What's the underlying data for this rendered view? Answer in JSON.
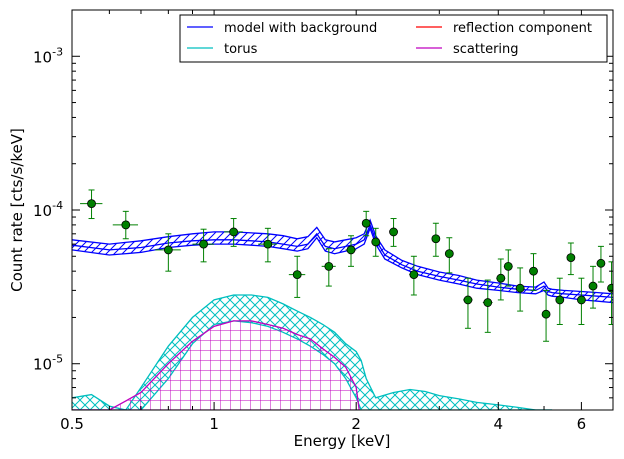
{
  "chart_data": {
    "type": "line",
    "xlabel": "Energy [keV]",
    "ylabel": "Count rate [cts/s/keV]",
    "x_scale": "log",
    "y_scale": "log",
    "xlim": [
      0.5,
      7.0
    ],
    "ylim": [
      5e-06,
      0.002
    ],
    "x_ticks": [
      {
        "value": 0.5,
        "label": "0.5"
      },
      {
        "value": 1,
        "label": "1"
      },
      {
        "value": 2,
        "label": "2"
      },
      {
        "value": 4,
        "label": "4"
      },
      {
        "value": 6,
        "label": "6"
      }
    ],
    "y_ticks": [
      {
        "value": 1e-05,
        "base": "10",
        "exp": "-5"
      },
      {
        "value": 0.0001,
        "base": "10",
        "exp": "-4"
      },
      {
        "value": 0.001,
        "base": "10",
        "exp": "-3"
      }
    ],
    "legend": {
      "placement": "top-right",
      "columns": 2,
      "entries": [
        {
          "label": "model with background",
          "color": "#0000ff"
        },
        {
          "label": "torus",
          "color": "#00bfbf"
        },
        {
          "label": "reflection component",
          "color": "#ff0000"
        },
        {
          "label": "scattering",
          "color": "#bf00bf"
        }
      ]
    },
    "series": [
      {
        "name": "model with background",
        "color": "#0000ff",
        "hatch": "diagonal",
        "x": [
          0.5,
          0.6,
          0.7,
          0.8,
          0.9,
          1.0,
          1.1,
          1.2,
          1.3,
          1.4,
          1.5,
          1.58,
          1.65,
          1.72,
          1.8,
          1.9,
          2.0,
          2.08,
          2.14,
          2.2,
          2.3,
          2.5,
          2.7,
          3.0,
          3.3,
          3.6,
          4.0,
          4.4,
          4.8,
          5.0,
          5.1,
          5.2,
          5.5,
          6.0,
          6.5,
          7.0
        ],
        "lower": [
          5.5e-05,
          5.1e-05,
          5.3e-05,
          5.7e-05,
          5.9e-05,
          6e-05,
          6e-05,
          5.9e-05,
          5.8e-05,
          5.6e-05,
          5.4e-05,
          5.6e-05,
          6.6e-05,
          5.4e-05,
          5.2e-05,
          5.4e-05,
          5.6e-05,
          6e-05,
          7.6e-05,
          6e-05,
          4.8e-05,
          4.2e-05,
          3.8e-05,
          3.5e-05,
          3.3e-05,
          3.1e-05,
          3e-05,
          2.9e-05,
          2.85e-05,
          3e-05,
          2.8e-05,
          2.75e-05,
          2.7e-05,
          2.6e-05,
          2.55e-05,
          2.5e-05
        ],
        "model": [
          5.9e-05,
          5.5e-05,
          5.7e-05,
          6.1e-05,
          6.3e-05,
          6.4e-05,
          6.4e-05,
          6.3e-05,
          6.2e-05,
          6e-05,
          5.8e-05,
          6e-05,
          7e-05,
          5.8e-05,
          5.6e-05,
          5.8e-05,
          6e-05,
          6.4e-05,
          8e-05,
          6.4e-05,
          5.1e-05,
          4.4e-05,
          4e-05,
          3.7e-05,
          3.5e-05,
          3.3e-05,
          3.15e-05,
          3.05e-05,
          3e-05,
          3.2e-05,
          2.95e-05,
          2.9e-05,
          2.85e-05,
          2.8e-05,
          2.75e-05,
          2.7e-05
        ],
        "upper": [
          6.4e-05,
          6e-05,
          6.3e-05,
          6.7e-05,
          7e-05,
          7.2e-05,
          7.2e-05,
          7.1e-05,
          7e-05,
          6.8e-05,
          6.5e-05,
          6.7e-05,
          7.7e-05,
          6.4e-05,
          6.2e-05,
          6.4e-05,
          6.6e-05,
          7e-05,
          8.6e-05,
          6.8e-05,
          5.5e-05,
          4.7e-05,
          4.3e-05,
          3.95e-05,
          3.75e-05,
          3.5e-05,
          3.35e-05,
          3.2e-05,
          3.15e-05,
          3.4e-05,
          3.1e-05,
          3.05e-05,
          3e-05,
          2.95e-05,
          2.9e-05,
          2.85e-05
        ]
      },
      {
        "name": "torus",
        "color": "#00bfbf",
        "hatch": "crosshatch",
        "x": [
          0.5,
          0.55,
          0.6,
          0.65,
          0.7,
          0.8,
          0.9,
          1.0,
          1.1,
          1.2,
          1.3,
          1.4,
          1.5,
          1.6,
          1.7,
          1.8,
          1.9,
          2.0,
          2.05,
          2.1,
          2.2,
          2.4,
          2.6,
          2.8,
          3.0,
          3.3,
          3.6,
          4.0,
          4.4,
          4.8,
          5.0,
          5.2
        ],
        "lower": [
          5e-06,
          5e-06,
          5e-06,
          5e-06,
          5e-06,
          8e-06,
          1.35e-05,
          1.8e-05,
          1.9e-05,
          1.85e-05,
          1.75e-05,
          1.6e-05,
          1.45e-05,
          1.3e-05,
          1.15e-05,
          1e-05,
          8e-06,
          6e-06,
          5e-06,
          5e-06,
          5e-06,
          5e-06,
          5e-06,
          5e-06,
          5e-06,
          5e-06,
          5e-06,
          5e-06,
          5e-06,
          5e-06,
          5e-06,
          5e-06
        ],
        "upper": [
          6e-06,
          6.3e-06,
          5.3e-06,
          5e-06,
          7e-06,
          1.3e-05,
          2e-05,
          2.6e-05,
          2.8e-05,
          2.8e-05,
          2.7e-05,
          2.45e-05,
          2.2e-05,
          2e-05,
          1.8e-05,
          1.6e-05,
          1.35e-05,
          1.2e-05,
          1.05e-05,
          8e-06,
          6e-06,
          6.5e-06,
          6.8e-06,
          6.6e-06,
          6.2e-06,
          5.9e-06,
          5.6e-06,
          5.4e-06,
          5.2e-06,
          5e-06,
          5e-06,
          5e-06
        ]
      },
      {
        "name": "scattering",
        "color": "#bf00bf",
        "hatch": "grid",
        "x": [
          0.5,
          0.6,
          0.7,
          0.8,
          0.9,
          1.0,
          1.1,
          1.2,
          1.3,
          1.4,
          1.5,
          1.6,
          1.7,
          1.8,
          1.9,
          2.0,
          2.03
        ],
        "lower": [
          5e-06,
          5e-06,
          5e-06,
          5e-06,
          5e-06,
          5e-06,
          5e-06,
          5e-06,
          5e-06,
          5e-06,
          5e-06,
          5e-06,
          5e-06,
          5e-06,
          5e-06,
          5e-06,
          5e-06
        ],
        "upper": [
          5e-06,
          5e-06,
          6.5e-06,
          1e-05,
          1.4e-05,
          1.75e-05,
          1.9e-05,
          1.9e-05,
          1.8e-05,
          1.7e-05,
          1.55e-05,
          1.45e-05,
          1.25e-05,
          1.1e-05,
          9.5e-06,
          7e-06,
          5e-06
        ]
      }
    ],
    "data_points": {
      "color": "#008000",
      "points": [
        {
          "x": 0.55,
          "y": 0.00011,
          "xerr": 0.03,
          "ylo": 8.8e-05,
          "yhi": 0.000135
        },
        {
          "x": 0.65,
          "y": 8e-05,
          "xerr": 0.04,
          "ylo": 6.5e-05,
          "yhi": 9.8e-05
        },
        {
          "x": 0.8,
          "y": 5.5e-05,
          "xerr": 0.05,
          "ylo": 4e-05,
          "yhi": 7e-05
        },
        {
          "x": 0.95,
          "y": 6e-05,
          "xerr": 0.05,
          "ylo": 4.6e-05,
          "yhi": 7.5e-05
        },
        {
          "x": 1.1,
          "y": 7.2e-05,
          "xerr": 0.05,
          "ylo": 5.8e-05,
          "yhi": 8.8e-05
        },
        {
          "x": 1.3,
          "y": 6e-05,
          "xerr": 0.06,
          "ylo": 4.6e-05,
          "yhi": 7.6e-05
        },
        {
          "x": 1.5,
          "y": 3.8e-05,
          "xerr": 0.06,
          "ylo": 2.7e-05,
          "yhi": 5e-05
        },
        {
          "x": 1.75,
          "y": 4.3e-05,
          "xerr": 0.06,
          "ylo": 3.2e-05,
          "yhi": 5.6e-05
        },
        {
          "x": 1.95,
          "y": 5.5e-05,
          "xerr": 0.05,
          "ylo": 4.3e-05,
          "yhi": 6.8e-05
        },
        {
          "x": 2.1,
          "y": 8.2e-05,
          "xerr": 0.04,
          "ylo": 6.8e-05,
          "yhi": 9.8e-05
        },
        {
          "x": 2.2,
          "y": 6.2e-05,
          "xerr": 0.04,
          "ylo": 5e-05,
          "yhi": 7.6e-05
        },
        {
          "x": 2.4,
          "y": 7.2e-05,
          "xerr": 0.05,
          "ylo": 5.8e-05,
          "yhi": 8.8e-05
        },
        {
          "x": 2.65,
          "y": 3.8e-05,
          "xerr": 0.06,
          "ylo": 2.8e-05,
          "yhi": 5e-05
        },
        {
          "x": 2.95,
          "y": 6.5e-05,
          "xerr": 0.06,
          "ylo": 5e-05,
          "yhi": 8.2e-05
        },
        {
          "x": 3.15,
          "y": 5.2e-05,
          "xerr": 0.06,
          "ylo": 3.9e-05,
          "yhi": 6.6e-05
        },
        {
          "x": 3.45,
          "y": 2.6e-05,
          "xerr": 0.08,
          "ylo": 1.7e-05,
          "yhi": 3.6e-05
        },
        {
          "x": 3.8,
          "y": 2.5e-05,
          "xerr": 0.09,
          "ylo": 1.6e-05,
          "yhi": 3.5e-05
        },
        {
          "x": 4.05,
          "y": 3.6e-05,
          "xerr": 0.09,
          "ylo": 2.6e-05,
          "yhi": 4.8e-05
        },
        {
          "x": 4.2,
          "y": 4.3e-05,
          "xerr": 0.09,
          "ylo": 3.2e-05,
          "yhi": 5.5e-05
        },
        {
          "x": 4.45,
          "y": 3.1e-05,
          "xerr": 0.1,
          "ylo": 2.2e-05,
          "yhi": 4.2e-05
        },
        {
          "x": 4.75,
          "y": 4e-05,
          "xerr": 0.1,
          "ylo": 3e-05,
          "yhi": 5.2e-05
        },
        {
          "x": 5.05,
          "y": 2.1e-05,
          "xerr": 0.1,
          "ylo": 1.4e-05,
          "yhi": 3e-05
        },
        {
          "x": 5.4,
          "y": 2.6e-05,
          "xerr": 0.11,
          "ylo": 1.8e-05,
          "yhi": 3.6e-05
        },
        {
          "x": 5.7,
          "y": 4.9e-05,
          "xerr": 0.11,
          "ylo": 3.8e-05,
          "yhi": 6.1e-05
        },
        {
          "x": 6.0,
          "y": 2.6e-05,
          "xerr": 0.12,
          "ylo": 1.8e-05,
          "yhi": 3.6e-05
        },
        {
          "x": 6.35,
          "y": 3.2e-05,
          "xerr": 0.12,
          "ylo": 2.3e-05,
          "yhi": 4.3e-05
        },
        {
          "x": 6.6,
          "y": 4.5e-05,
          "xerr": 0.13,
          "ylo": 3.4e-05,
          "yhi": 5.8e-05
        },
        {
          "x": 6.95,
          "y": 3.1e-05,
          "xerr": 0.13,
          "ylo": 1.8e-05,
          "yhi": 4.6e-05
        }
      ]
    }
  }
}
